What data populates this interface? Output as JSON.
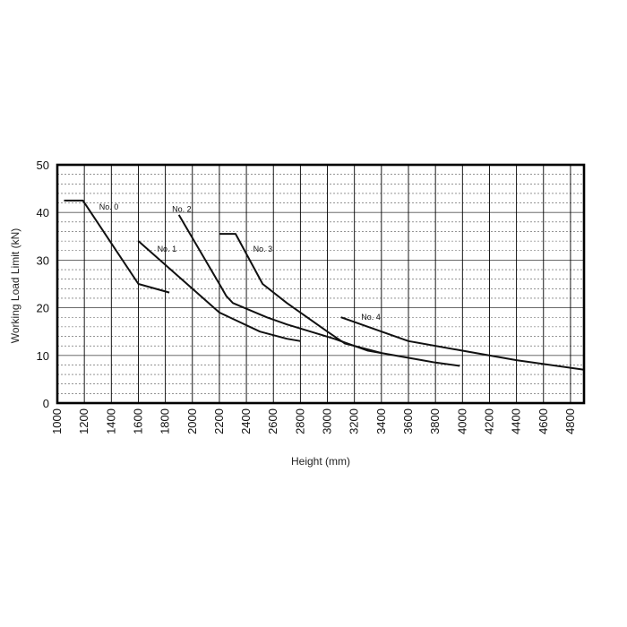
{
  "chart_data": {
    "type": "line",
    "xlabel": "Height (mm)",
    "ylabel": "Working Load Limit (kN)",
    "xlim": [
      1000,
      4900
    ],
    "ylim": [
      0,
      50
    ],
    "x_ticks": [
      1000,
      1200,
      1400,
      1600,
      1800,
      2000,
      2200,
      2400,
      2600,
      2800,
      3000,
      3200,
      3400,
      3600,
      3800,
      4000,
      4200,
      4400,
      4600,
      4800
    ],
    "y_ticks": [
      0,
      10,
      20,
      30,
      40,
      50
    ],
    "grid": {
      "horizontal_minor_step": 2,
      "horizontal_major_step": 10,
      "vertical_step": 200
    },
    "colors": {
      "line": "#111111",
      "grid": "#555555",
      "frame": "#000000"
    },
    "series": [
      {
        "name": "No. 0",
        "x": [
          1050,
          1190,
          1600,
          1830
        ],
        "y": [
          42.5,
          42.5,
          25,
          23.2
        ]
      },
      {
        "name": "No. 1",
        "x": [
          1600,
          2200,
          2500,
          2700,
          2800
        ],
        "y": [
          34,
          19,
          15,
          13.5,
          13
        ]
      },
      {
        "name": "No. 2",
        "x": [
          1900,
          2200,
          2250,
          2300,
          2550,
          2700,
          3050,
          3200,
          3400
        ],
        "y": [
          39.5,
          25,
          22.5,
          21,
          18,
          16.5,
          13.5,
          12,
          10.5
        ]
      },
      {
        "name": "No. 3",
        "x": [
          2200,
          2320,
          2520,
          2700,
          3000,
          3130,
          3200,
          3300,
          3700,
          3800,
          3980
        ],
        "y": [
          35.5,
          35.5,
          25,
          21,
          15,
          12.5,
          12,
          11,
          9,
          8.5,
          7.8
        ]
      },
      {
        "name": "No. 4",
        "x": [
          3100,
          3600,
          4000,
          4400,
          4900
        ],
        "y": [
          18,
          13,
          11,
          9,
          7
        ]
      }
    ],
    "annotations": [
      {
        "text": "No. 0",
        "x": 1310,
        "y": 40.6
      },
      {
        "text": "No. 2",
        "x": 1850,
        "y": 40.1
      },
      {
        "text": "No. 1",
        "x": 1740,
        "y": 31.8
      },
      {
        "text": "No. 3",
        "x": 2450,
        "y": 31.8
      },
      {
        "text": "No. 4",
        "x": 3250,
        "y": 17.5
      }
    ]
  }
}
